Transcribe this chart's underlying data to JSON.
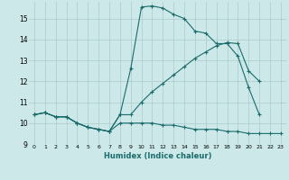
{
  "xlabel": "Humidex (Indice chaleur)",
  "bg_color": "#cce8e8",
  "grid_color": "#aacccc",
  "line_color": "#1a6b6b",
  "xlim": [
    -0.5,
    23.5
  ],
  "ylim": [
    9.0,
    15.8
  ],
  "xticks": [
    0,
    1,
    2,
    3,
    4,
    5,
    6,
    7,
    8,
    9,
    10,
    11,
    12,
    13,
    14,
    15,
    16,
    17,
    18,
    19,
    20,
    21,
    22,
    23
  ],
  "yticks": [
    9,
    10,
    11,
    12,
    13,
    14,
    15
  ],
  "line1_x": [
    0,
    1,
    2,
    3,
    4,
    5,
    6,
    7,
    8,
    9,
    10,
    11,
    12,
    13,
    14,
    15,
    16,
    17,
    18,
    19,
    20,
    21,
    22,
    23
  ],
  "line1_y": [
    10.4,
    10.5,
    10.3,
    10.3,
    10.0,
    9.8,
    9.7,
    9.6,
    10.0,
    10.0,
    10.0,
    10.0,
    9.9,
    9.9,
    9.8,
    9.7,
    9.7,
    9.7,
    9.6,
    9.6,
    9.5,
    9.5,
    9.5,
    9.5
  ],
  "line2_x": [
    0,
    1,
    2,
    3,
    4,
    5,
    6,
    7,
    8,
    9,
    10,
    11,
    12,
    13,
    14,
    15,
    16,
    17,
    18,
    19,
    20,
    21
  ],
  "line2_y": [
    10.4,
    10.5,
    10.3,
    10.3,
    10.0,
    9.8,
    9.7,
    9.6,
    10.4,
    12.6,
    15.55,
    15.6,
    15.5,
    15.2,
    15.0,
    14.4,
    14.3,
    13.8,
    13.8,
    13.2,
    11.7,
    10.4
  ],
  "line3_x": [
    0,
    1,
    2,
    3,
    4,
    5,
    6,
    7,
    8,
    9,
    10,
    11,
    12,
    13,
    14,
    15,
    16,
    17,
    18,
    19,
    20,
    21
  ],
  "line3_y": [
    10.4,
    10.5,
    10.3,
    10.3,
    10.0,
    9.8,
    9.7,
    9.6,
    10.4,
    10.4,
    11.0,
    11.5,
    11.9,
    12.3,
    12.7,
    13.1,
    13.4,
    13.7,
    13.85,
    13.8,
    12.5,
    12.0
  ]
}
